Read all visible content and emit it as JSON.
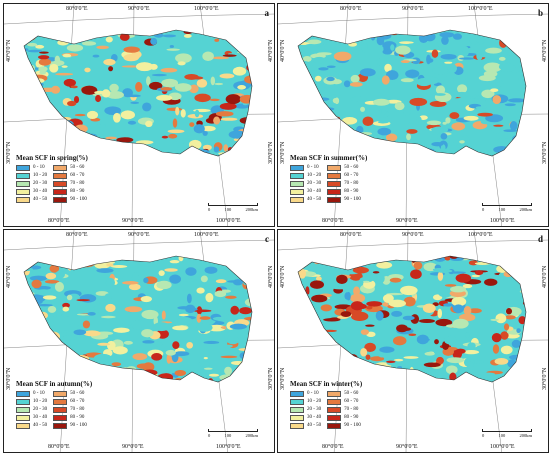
{
  "lon_top": [
    "80°0'0\"E",
    "90°0'0\"E",
    "100°0'0\"E"
  ],
  "lon_bottom": [
    "80°0'0\"E",
    "90°0'0\"E",
    "100°0'0\"E"
  ],
  "lat_left": [
    "40°0'0\"N",
    "30°0'0\"N"
  ],
  "lat_right": [
    "40°0'0\"N",
    "30°0'0\"N"
  ],
  "legend_classes": [
    "0 - 10",
    "10 - 20",
    "20 - 30",
    "30 - 40",
    "40 - 50",
    "50 - 60",
    "60 - 70",
    "70 - 80",
    "80 - 90",
    "90 - 100"
  ],
  "legend_colors": [
    "#3fa5dc",
    "#55d3d3",
    "#b7e8b2",
    "#f2f09f",
    "#f9d98a",
    "#f1a96a",
    "#e4793f",
    "#d74a27",
    "#c7261a",
    "#99170d"
  ],
  "scale": {
    "ticks": [
      "0",
      "100",
      "200"
    ],
    "unit": "km"
  },
  "panels": [
    {
      "id": "a",
      "title": "Mean SCF in spring(%)"
    },
    {
      "id": "b",
      "title": "Mean SCF in summer(%)"
    },
    {
      "id": "c",
      "title": "Mean SCF in autumn(%)"
    },
    {
      "id": "d",
      "title": "Mean SCF in winter(%)"
    }
  ]
}
